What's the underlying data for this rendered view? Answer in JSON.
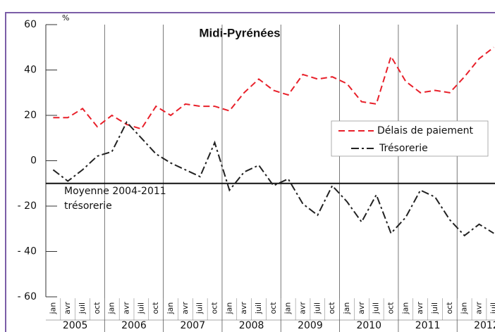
{
  "chart_data": {
    "type": "line",
    "title": "Midi-Pyrénées",
    "y_unit": "%",
    "categories": [
      "jan",
      "avr",
      "juil",
      "oct",
      "jan",
      "avr",
      "juil",
      "oct",
      "jan",
      "avr",
      "juil",
      "oct",
      "jan",
      "avr",
      "juil",
      "oct",
      "jan",
      "avr",
      "juil",
      "oct",
      "jan",
      "avr",
      "juil",
      "oct",
      "jan",
      "avr",
      "juil",
      "oct",
      "jan",
      "avr",
      "juil"
    ],
    "years": [
      "2005",
      "2006",
      "2007",
      "2008",
      "2009",
      "2010",
      "2011",
      "2012"
    ],
    "series": [
      {
        "name": "Délais de paiement",
        "color": "#e8202a",
        "dash": "dashed",
        "values": [
          19,
          19,
          23,
          15,
          20,
          16,
          14,
          24,
          20,
          25,
          24,
          24,
          22,
          30,
          36,
          31,
          29,
          38,
          36,
          37,
          34,
          26,
          25,
          46,
          35,
          30,
          31,
          30,
          37,
          45,
          50
        ]
      },
      {
        "name": "Trésorerie",
        "color": "#222222",
        "dash": "dash-dot",
        "values": [
          -4,
          -9,
          -4,
          2,
          4,
          17,
          10,
          3,
          -1,
          -4,
          -7,
          8,
          -13,
          -5,
          -2,
          -11,
          -8,
          -19,
          -24,
          -11,
          -18,
          -27,
          -15,
          -32,
          -25,
          -13,
          -16,
          -26,
          -33,
          -28,
          -32
        ]
      }
    ],
    "reference_line": {
      "value": -10,
      "label_lines": [
        "Moyenne 2004-2011",
        "trésorerie"
      ]
    },
    "ylim": [
      -60,
      60
    ],
    "yticks": [
      60,
      40,
      20,
      0,
      {
        "value": -20,
        "label": "- 20"
      },
      {
        "value": -40,
        "label": "- 40"
      },
      {
        "value": -60,
        "label": "- 60"
      }
    ],
    "legend": "right"
  }
}
